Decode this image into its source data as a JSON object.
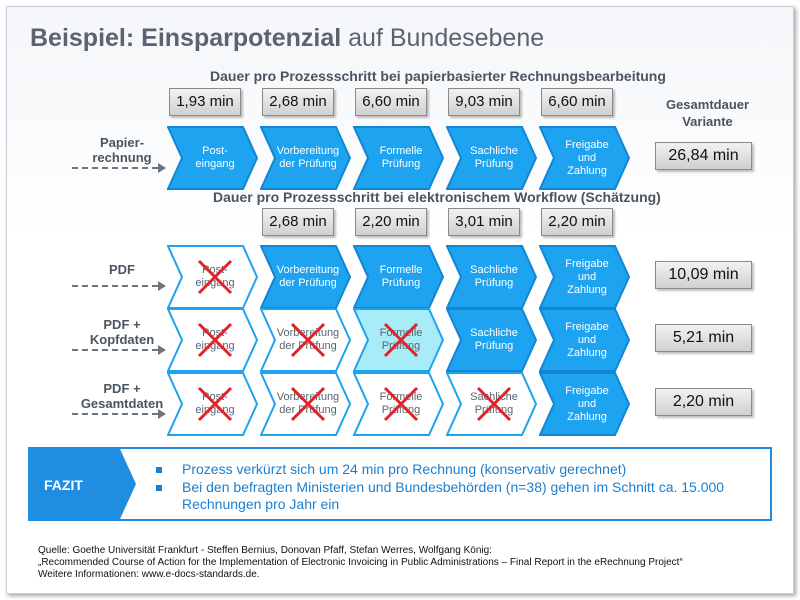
{
  "title": {
    "bold": "Beispiel: Einsparpotenzial",
    "rest": " auf Bundesebene"
  },
  "paper_header": "Dauer pro Prozessschritt bei papierbasierter Rechnungsbearbeitung",
  "paper_times": [
    "1,93 min",
    "2,68 min",
    "6,60 min",
    "9,03 min",
    "6,60 min"
  ],
  "gesamt_label": [
    "Gesamtdauer",
    "Variante"
  ],
  "electronic_header": "Dauer pro Prozessschritt bei elektronischem Workflow (Schätzung)",
  "electronic_times": [
    "2,68 min",
    "2,20 min",
    "3,01 min",
    "2,20 min"
  ],
  "steps": [
    [
      "Post-",
      "eingang"
    ],
    [
      "Vorbereitung",
      "der Prüfung"
    ],
    [
      "Formelle",
      "Prüfung"
    ],
    [
      "Sachliche",
      "Prüfung"
    ],
    [
      "Freigabe",
      "und",
      "Zahlung"
    ]
  ],
  "rows": [
    {
      "label": [
        "Papier-",
        "rechnung"
      ],
      "total": "26,84 min",
      "states": [
        "blue",
        "blue",
        "blue",
        "blue",
        "blue"
      ]
    },
    {
      "label": [
        "PDF"
      ],
      "total": "10,09 min",
      "states": [
        "crossed",
        "blue",
        "blue",
        "blue",
        "blue"
      ]
    },
    {
      "label": [
        "PDF +",
        "Kopfdaten"
      ],
      "total": "5,21 min",
      "states": [
        "crossed",
        "crossed",
        "crossed-light",
        "blue",
        "blue"
      ]
    },
    {
      "label": [
        "PDF +",
        "Gesamtdaten"
      ],
      "total": "2,20 min",
      "states": [
        "crossed",
        "crossed",
        "crossed",
        "crossed",
        "blue"
      ]
    }
  ],
  "fazit": {
    "tag": "FAZIT",
    "bullets": [
      "Prozess verkürzt sich um 24 min pro Rechnung (konservativ gerechnet)",
      "Bei den befragten Ministerien und Bundesbehörden (n=38) gehen im Schnitt ca. 15.000 Rechnungen pro Jahr ein"
    ]
  },
  "source": [
    "Quelle: Goethe Universität Frankfurt - Steffen Bernius, Donovan Pfaff, Stefan Werres, Wolfgang König:",
    "„Recommended Course of Action for the Implementation of Electronic Invoicing in Public Administrations – Final Report in the eRechnung Project“",
    "Weitere Informationen: www.e-docs-standards.de."
  ],
  "colors": {
    "step_blue": "#1ea3f0",
    "step_light": "#a8ecf7",
    "cross_red": "#e0242a",
    "fazit_blue": "#1f8ee0"
  }
}
